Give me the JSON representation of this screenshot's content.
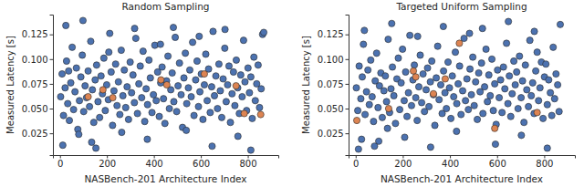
{
  "chart_data": [
    {
      "type": "scatter",
      "title": "Random Sampling",
      "x_label": "NASBench-201 Architecture Index",
      "y_label": "Measured Latency [s]",
      "xlim": [
        -30,
        930
      ],
      "xticks": [
        0,
        200,
        400,
        600,
        800
      ],
      "ylim": [
        0.003,
        0.145
      ],
      "yticks": [
        0.025,
        {
          "value": 0.05,
          "label": "0.050"
        },
        0.075,
        {
          "value": 0.1,
          "label": "0.100"
        },
        0.125
      ],
      "grid": false,
      "series": [
        {
          "color": "#4c72b0",
          "marker": "circle",
          "x": [
            3,
            9,
            15,
            22,
            28,
            33,
            40,
            46,
            52,
            58,
            64,
            70,
            76,
            83,
            89,
            95,
            101,
            107,
            113,
            120,
            126,
            131,
            138,
            144,
            150,
            156,
            162,
            169,
            175,
            181,
            187,
            193,
            199,
            206,
            212,
            218,
            224,
            230,
            237,
            243,
            249,
            255,
            261,
            268,
            274,
            280,
            286,
            292,
            299,
            305,
            311,
            317,
            323,
            330,
            336,
            342,
            348,
            354,
            361,
            367,
            373,
            379,
            385,
            392,
            398,
            404,
            410,
            416,
            423,
            429,
            435,
            441,
            447,
            454,
            460,
            466,
            472,
            478,
            485,
            491,
            497,
            503,
            509,
            516,
            522,
            528,
            534,
            540,
            547,
            553,
            559,
            565,
            571,
            578,
            584,
            590,
            596,
            602,
            609,
            615,
            621,
            627,
            633,
            640,
            646,
            652,
            658,
            664,
            671,
            677,
            683,
            689,
            695,
            702,
            708,
            714,
            720,
            726,
            733,
            739,
            745,
            751,
            757,
            764,
            770,
            776,
            782,
            788,
            795,
            801,
            807,
            813,
            819,
            826,
            832,
            838,
            844,
            850,
            857,
            863,
            12,
            37,
            98,
            153,
            208,
            263,
            318,
            372,
            428,
            483,
            538,
            593,
            648,
            703,
            758,
            813,
            868,
            25,
            80,
            135
          ],
          "values": [
            0.062,
            0.085,
            0.043,
            0.071,
            0.098,
            0.055,
            0.038,
            0.076,
            0.112,
            0.049,
            0.067,
            0.091,
            0.029,
            0.058,
            0.082,
            0.104,
            0.047,
            0.073,
            0.061,
            0.088,
            0.052,
            0.118,
            0.069,
            0.036,
            0.079,
            0.094,
            0.057,
            0.041,
            0.083,
            0.065,
            0.101,
            0.048,
            0.074,
            0.059,
            0.126,
            0.087,
            0.033,
            0.068,
            0.095,
            0.053,
            0.077,
            0.044,
            0.109,
            0.063,
            0.089,
            0.051,
            0.072,
            0.039,
            0.097,
            0.066,
            0.084,
            0.056,
            0.121,
            0.045,
            0.075,
            0.093,
            0.061,
            0.108,
            0.037,
            0.07,
            0.054,
            0.099,
            0.081,
            0.046,
            0.064,
            0.114,
            0.058,
            0.087,
            0.042,
            0.076,
            0.092,
            0.06,
            0.035,
            0.078,
            0.103,
            0.05,
            0.069,
            0.086,
            0.057,
            0.122,
            0.047,
            0.073,
            0.096,
            0.064,
            0.031,
            0.081,
            0.106,
            0.055,
            0.071,
            0.089,
            0.062,
            0.117,
            0.043,
            0.079,
            0.098,
            0.052,
            0.067,
            0.085,
            0.039,
            0.074,
            0.105,
            0.058,
            0.09,
            0.046,
            0.072,
            0.128,
            0.063,
            0.083,
            0.05,
            0.095,
            0.068,
            0.041,
            0.08,
            0.111,
            0.057,
            0.074,
            0.093,
            0.036,
            0.065,
            0.087,
            0.053,
            0.099,
            0.071,
            0.045,
            0.084,
            0.062,
            0.119,
            0.077,
            0.048,
            0.091,
            0.066,
            0.082,
            0.04,
            0.102,
            0.058,
            0.075,
            0.094,
            0.051,
            0.07,
            0.125,
            0.013,
            0.088,
            0.139,
            0.01,
            0.107,
            0.026,
            0.131,
            0.019,
            0.115,
            0.132,
            0.028,
            0.123,
            0.012,
            0.13,
            0.022,
            0.008,
            0.127,
            0.134,
            0.024,
            0.016
          ]
        },
        {
          "color": "#dd8452",
          "marker": "circle",
          "x": [
            120,
            183,
            225,
            430,
            455,
            615,
            750,
            785,
            855
          ],
          "values": [
            0.062,
            0.069,
            0.061,
            0.079,
            0.074,
            0.085,
            0.073,
            0.045,
            0.044
          ]
        }
      ]
    },
    {
      "type": "scatter",
      "title": "Targeted Uniform Sampling",
      "x_label": "NASBench-201 Architecture Index",
      "y_label": "Measured Latency [s]",
      "xlim": [
        -30,
        930
      ],
      "xticks": [
        0,
        200,
        400,
        600,
        800
      ],
      "ylim": [
        0.003,
        0.145
      ],
      "yticks": [
        0.025,
        {
          "value": 0.05,
          "label": "0.050"
        },
        0.075,
        {
          "value": 0.1,
          "label": "0.100"
        },
        0.125
      ],
      "grid": false,
      "series": [
        {
          "color": "#4c72b0",
          "marker": "circle",
          "x": [
            3,
            9,
            15,
            22,
            28,
            33,
            40,
            46,
            52,
            58,
            64,
            70,
            76,
            83,
            89,
            95,
            101,
            107,
            113,
            120,
            126,
            131,
            138,
            144,
            150,
            156,
            162,
            169,
            175,
            181,
            187,
            193,
            199,
            206,
            212,
            218,
            224,
            230,
            237,
            243,
            249,
            255,
            261,
            268,
            274,
            280,
            286,
            292,
            299,
            305,
            311,
            317,
            323,
            330,
            336,
            342,
            348,
            354,
            361,
            367,
            373,
            379,
            385,
            392,
            398,
            404,
            410,
            416,
            423,
            429,
            435,
            441,
            447,
            454,
            460,
            466,
            472,
            478,
            485,
            491,
            497,
            503,
            509,
            516,
            522,
            528,
            534,
            540,
            547,
            553,
            559,
            565,
            571,
            578,
            584,
            590,
            596,
            602,
            609,
            615,
            621,
            627,
            633,
            640,
            646,
            652,
            658,
            664,
            671,
            677,
            683,
            689,
            695,
            702,
            708,
            714,
            720,
            726,
            733,
            739,
            745,
            751,
            757,
            764,
            770,
            776,
            782,
            788,
            795,
            801,
            807,
            813,
            819,
            826,
            832,
            838,
            844,
            850,
            857,
            863,
            12,
            37,
            98,
            153,
            208,
            263,
            318,
            372,
            428,
            483,
            538,
            593,
            648,
            703,
            758,
            813,
            868,
            25,
            80,
            135
          ],
          "values": [
            0.071,
            0.048,
            0.093,
            0.06,
            0.082,
            0.115,
            0.044,
            0.067,
            0.089,
            0.054,
            0.099,
            0.062,
            0.037,
            0.078,
            0.106,
            0.051,
            0.073,
            0.086,
            0.041,
            0.068,
            0.083,
            0.057,
            0.12,
            0.046,
            0.07,
            0.092,
            0.063,
            0.035,
            0.08,
            0.101,
            0.049,
            0.076,
            0.11,
            0.058,
            0.087,
            0.042,
            0.066,
            0.124,
            0.053,
            0.079,
            0.094,
            0.061,
            0.038,
            0.072,
            0.104,
            0.056,
            0.085,
            0.047,
            0.069,
            0.091,
            0.052,
            0.077,
            0.098,
            0.064,
            0.033,
            0.081,
            0.113,
            0.059,
            0.074,
            0.045,
            0.088,
            0.066,
            0.05,
            0.097,
            0.071,
            0.04,
            0.083,
            0.062,
            0.107,
            0.055,
            0.075,
            0.093,
            0.044,
            0.068,
            0.121,
            0.058,
            0.08,
            0.049,
            0.09,
            0.064,
            0.102,
            0.053,
            0.077,
            0.039,
            0.086,
            0.067,
            0.096,
            0.045,
            0.072,
            0.11,
            0.057,
            0.084,
            0.063,
            0.1,
            0.048,
            0.075,
            0.034,
            0.089,
            0.061,
            0.079,
            0.046,
            0.092,
            0.07,
            0.116,
            0.055,
            0.083,
            0.042,
            0.065,
            0.098,
            0.074,
            0.087,
            0.05,
            0.103,
            0.061,
            0.078,
            0.036,
            0.094,
            0.069,
            0.052,
            0.119,
            0.063,
            0.076,
            0.045,
            0.088,
            0.107,
            0.058,
            0.071,
            0.097,
            0.04,
            0.082,
            0.095,
            0.054,
            0.079,
            0.066,
            0.043,
            0.112,
            0.06,
            0.085,
            0.074,
            0.047,
            0.009,
            0.129,
            0.017,
            0.136,
            0.021,
            0.123,
            0.011,
            0.133,
            0.027,
            0.126,
            0.131,
            0.014,
            0.138,
            0.023,
            0.128,
            0.01,
            0.135,
            0.019,
            0.012,
            0.03
          ]
        },
        {
          "color": "#dd8452",
          "marker": "circle",
          "x": [
            5,
            140,
            245,
            255,
            330,
            380,
            440,
            590,
            770
          ],
          "values": [
            0.038,
            0.05,
            0.088,
            0.082,
            0.065,
            0.08,
            0.116,
            0.03,
            0.046
          ]
        }
      ]
    }
  ]
}
